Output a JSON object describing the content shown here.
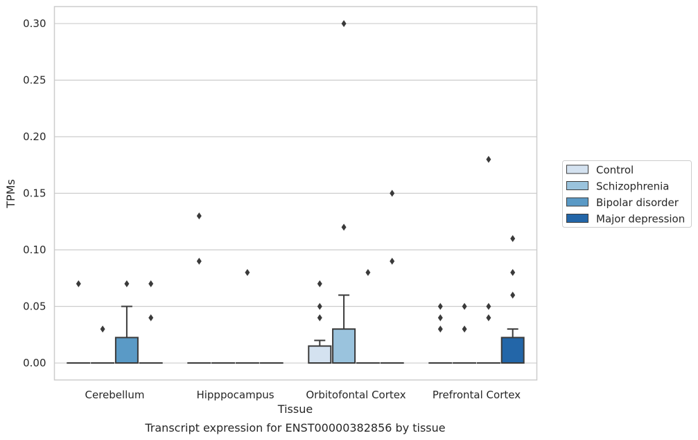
{
  "chart_data": {
    "type": "box",
    "caption": "Transcript expression for ENST00000382856 by tissue",
    "xlabel": "Tissue",
    "ylabel": "TPMs",
    "ylim": [
      -0.015,
      0.315
    ],
    "yticks": [
      0.0,
      0.05,
      0.1,
      0.15,
      0.2,
      0.25,
      0.3
    ],
    "ytick_labels": [
      "0.00",
      "0.05",
      "0.10",
      "0.15",
      "0.20",
      "0.25",
      "0.30"
    ],
    "grid": "horizontal",
    "legend_position": "right",
    "categories": [
      "Cerebellum",
      "Hipppocampus",
      "Orbitofontal Cortex",
      "Prefrontal Cortex"
    ],
    "series": [
      {
        "name": "Control",
        "color": "#d4e2f0",
        "boxes": [
          {
            "q1": 0,
            "median": 0,
            "q3": 0,
            "whisker_low": 0,
            "whisker_high": 0,
            "outliers": [
              0.07
            ]
          },
          {
            "q1": 0,
            "median": 0,
            "q3": 0,
            "whisker_low": 0,
            "whisker_high": 0,
            "outliers": [
              0.13,
              0.09
            ]
          },
          {
            "q1": 0,
            "median": 0,
            "q3": 0.015,
            "whisker_low": 0,
            "whisker_high": 0.02,
            "outliers": [
              0.07,
              0.05,
              0.04
            ]
          },
          {
            "q1": 0,
            "median": 0,
            "q3": 0,
            "whisker_low": 0,
            "whisker_high": 0,
            "outliers": [
              0.05,
              0.04,
              0.03
            ]
          }
        ]
      },
      {
        "name": "Schizophrenia",
        "color": "#9ac3dd",
        "boxes": [
          {
            "q1": 0,
            "median": 0,
            "q3": 0,
            "whisker_low": 0,
            "whisker_high": 0,
            "outliers": [
              0.03
            ]
          },
          {
            "q1": 0,
            "median": 0,
            "q3": 0,
            "whisker_low": 0,
            "whisker_high": 0,
            "outliers": []
          },
          {
            "q1": 0,
            "median": 0,
            "q3": 0.03,
            "whisker_low": 0,
            "whisker_high": 0.06,
            "outliers": [
              0.3,
              0.12
            ]
          },
          {
            "q1": 0,
            "median": 0,
            "q3": 0,
            "whisker_low": 0,
            "whisker_high": 0,
            "outliers": [
              0.05,
              0.03
            ]
          }
        ]
      },
      {
        "name": "Bipolar disorder",
        "color": "#5a9ac6",
        "boxes": [
          {
            "q1": 0,
            "median": 0,
            "q3": 0.0225,
            "whisker_low": 0,
            "whisker_high": 0.05,
            "outliers": [
              0.07
            ]
          },
          {
            "q1": 0,
            "median": 0,
            "q3": 0,
            "whisker_low": 0,
            "whisker_high": 0,
            "outliers": [
              0.08
            ]
          },
          {
            "q1": 0,
            "median": 0,
            "q3": 0,
            "whisker_low": 0,
            "whisker_high": 0,
            "outliers": [
              0.08
            ]
          },
          {
            "q1": 0,
            "median": 0,
            "q3": 0,
            "whisker_low": 0,
            "whisker_high": 0,
            "outliers": [
              0.18,
              0.05,
              0.04
            ]
          }
        ]
      },
      {
        "name": "Major depression",
        "color": "#2366a8",
        "boxes": [
          {
            "q1": 0,
            "median": 0,
            "q3": 0,
            "whisker_low": 0,
            "whisker_high": 0,
            "outliers": [
              0.07,
              0.04
            ]
          },
          {
            "q1": 0,
            "median": 0,
            "q3": 0,
            "whisker_low": 0,
            "whisker_high": 0,
            "outliers": []
          },
          {
            "q1": 0,
            "median": 0,
            "q3": 0,
            "whisker_low": 0,
            "whisker_high": 0,
            "outliers": [
              0.15,
              0.09
            ]
          },
          {
            "q1": 0,
            "median": 0,
            "q3": 0.0225,
            "whisker_low": 0,
            "whisker_high": 0.03,
            "outliers": [
              0.11,
              0.08,
              0.06
            ]
          }
        ]
      }
    ]
  }
}
